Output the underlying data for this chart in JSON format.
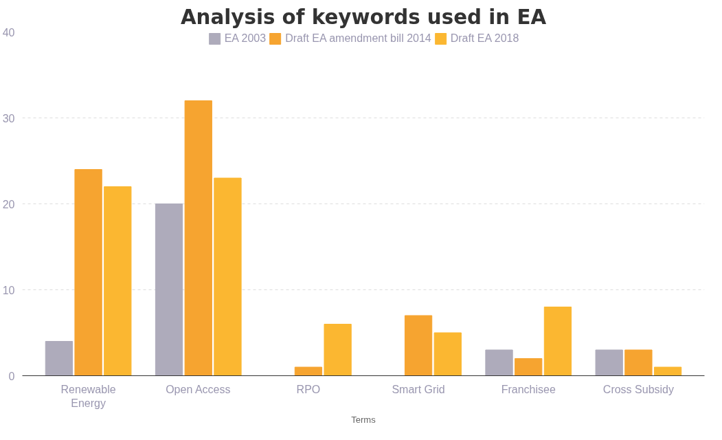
{
  "chart_data": {
    "type": "bar",
    "title": "Analysis of keywords used in EA",
    "xlabel": "Terms",
    "categories": [
      "Renewable\nEnergy",
      "Open Access",
      "RPO",
      "Smart Grid",
      "Franchisee",
      "Cross Subsidy"
    ],
    "series": [
      {
        "name": "EA 2003",
        "color": "#aeabbb",
        "values": [
          4,
          20,
          0,
          0,
          3,
          3
        ]
      },
      {
        "name": "Draft EA amendment bill 2014",
        "color": "#f6a430",
        "values": [
          24,
          32,
          1,
          7,
          2,
          3
        ]
      },
      {
        "name": "Draft EA 2018",
        "color": "#fbb731",
        "values": [
          22,
          23,
          6,
          5,
          8,
          1
        ]
      }
    ],
    "ylim": [
      0,
      40
    ],
    "yticks": [
      0,
      10,
      20,
      30,
      40
    ],
    "grid": "y",
    "legend": "top"
  }
}
